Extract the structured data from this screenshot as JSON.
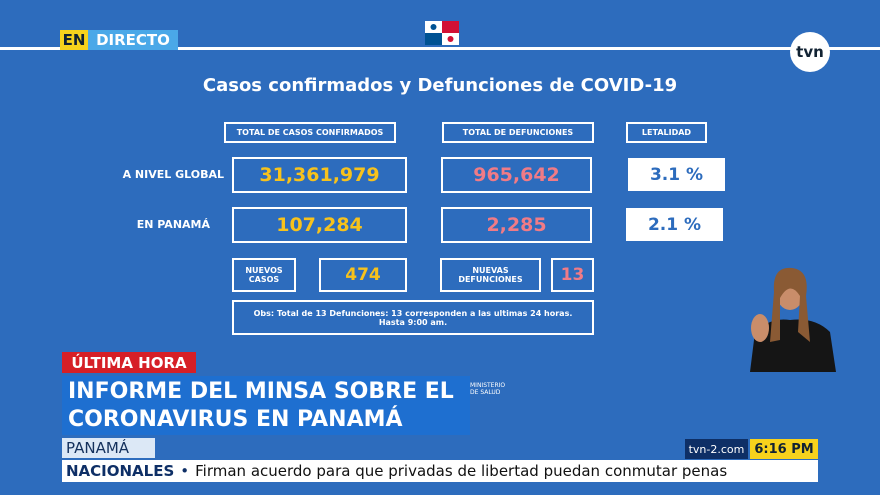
{
  "header": {
    "live": "EN",
    "live_word": "DIRECTO",
    "logo": "tvn"
  },
  "board": {
    "title": "Casos confirmados y Defunciones de COVID-19",
    "columns": [
      "TOTAL DE CASOS CONFIRMADOS",
      "TOTAL DE DEFUNCIONES",
      "LETALIDAD"
    ],
    "rows": [
      [
        "A NIVEL GLOBAL",
        "31,361,979",
        "965,642",
        "3.1 %"
      ],
      [
        "EN PANAMÁ",
        "107,284",
        "2,285",
        "2.1 %"
      ]
    ],
    "new_cases_label": "NUEVOS CASOS",
    "new_cases": "474",
    "new_deaths_label": "NUEVAS DEFUNCIONES",
    "new_deaths": "13",
    "note_lines": [
      "Obs: Total de 13 Defunciones: 13  corresponden a las ultimas 24 horas.",
      "Hasta 9:00 am."
    ],
    "ministry_lines": [
      "MINISTERIO",
      "DE SALUD"
    ]
  },
  "ticker": {
    "breaking": "ÚLTIMA HORA",
    "headline_lines": [
      "INFORME DEL MINSA SOBRE EL",
      "CORONAVIRUS EN PANAMÁ"
    ],
    "location": "PANAMÁ",
    "site": "tvn-2.com",
    "time": "6:16 PM",
    "section": "NACIONALES",
    "news": "Firman acuerdo para que privadas de libertad puedan conmutar penas"
  }
}
